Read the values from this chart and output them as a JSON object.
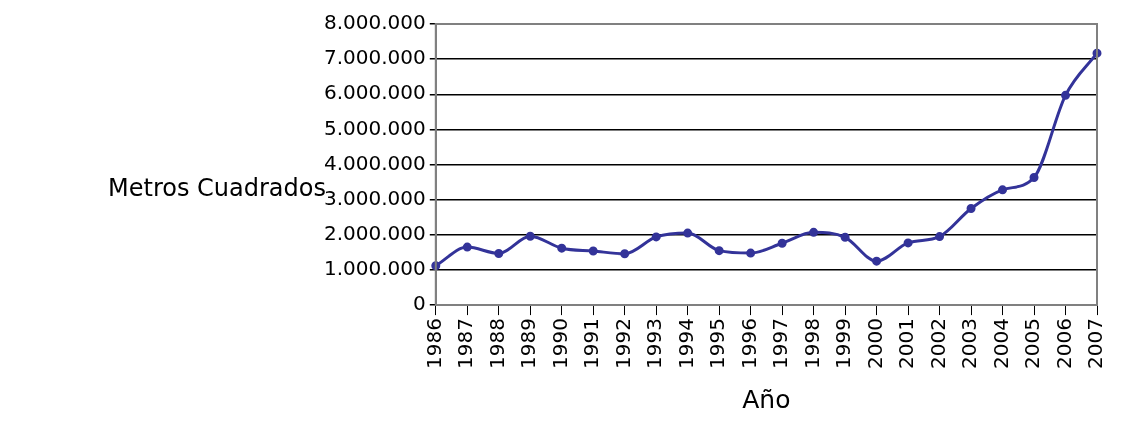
{
  "chart_data": {
    "type": "line",
    "xlabel": "Año",
    "ylabel": "Metros Cuadrados",
    "categories": [
      "1986",
      "1987",
      "1988",
      "1989",
      "1990",
      "1991",
      "1992",
      "1993",
      "1994",
      "1995",
      "1996",
      "1997",
      "1998",
      "1999",
      "2000",
      "2001",
      "2002",
      "2003",
      "2004",
      "2005",
      "2006",
      "2007"
    ],
    "series": [
      {
        "color": "#333399",
        "values": [
          1120000,
          1650000,
          1470000,
          1960000,
          1620000,
          1540000,
          1460000,
          1940000,
          2050000,
          1550000,
          1480000,
          1760000,
          2070000,
          1930000,
          1250000,
          1770000,
          1950000,
          2750000,
          3280000,
          3630000,
          5970000,
          7170000
        ]
      }
    ],
    "ylim": [
      0,
      8000000
    ],
    "yticks": [
      {
        "value": 0,
        "label": "0"
      },
      {
        "value": 1000000,
        "label": "1.000.000"
      },
      {
        "value": 2000000,
        "label": "2.000.000"
      },
      {
        "value": 3000000,
        "label": "3.000.000"
      },
      {
        "value": 4000000,
        "label": "4.000.000"
      },
      {
        "value": 5000000,
        "label": "5.000.000"
      },
      {
        "value": 6000000,
        "label": "6.000.000"
      },
      {
        "value": 7000000,
        "label": "7.000.000"
      },
      {
        "value": 8000000,
        "label": "8.000.000"
      }
    ],
    "grid": "y",
    "legend": false,
    "marker": "circle",
    "line_style": "solid"
  }
}
